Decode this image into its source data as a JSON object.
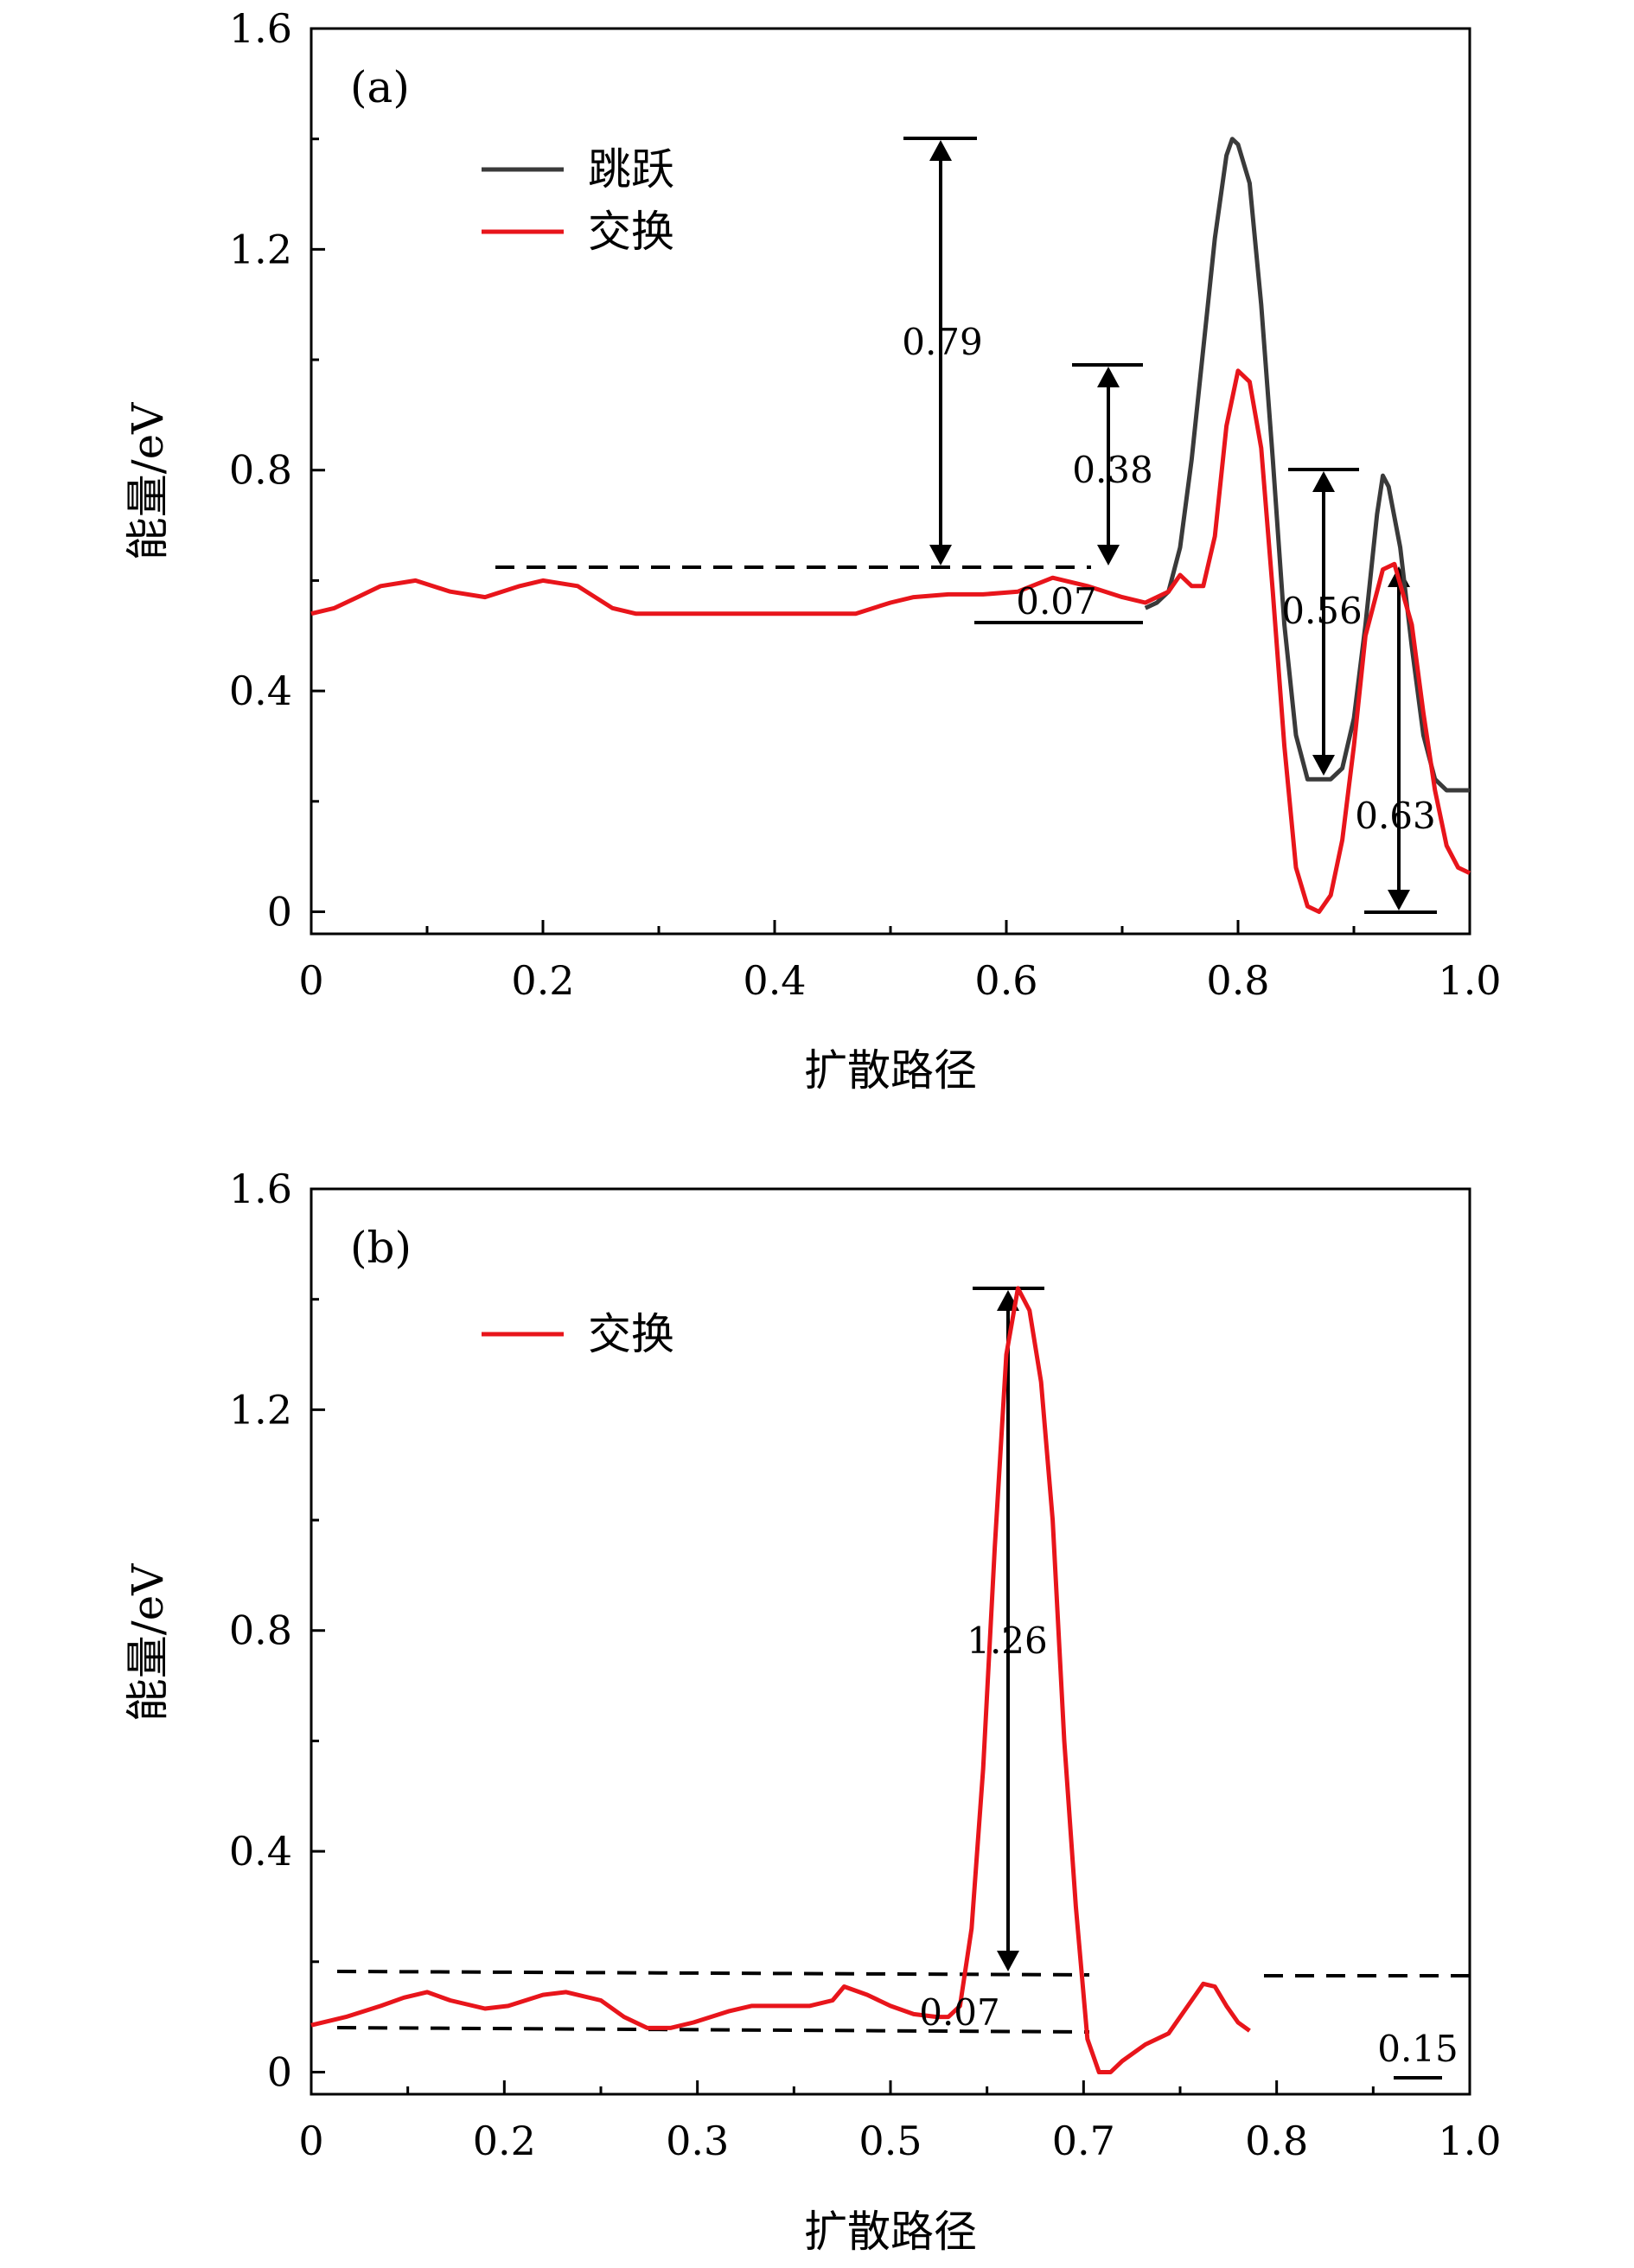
{
  "colors": {
    "jump": "#3a3a3a",
    "exchange": "#e8151b",
    "axis": "#000000",
    "background": "#ffffff"
  },
  "chart_data": [
    {
      "type": "line",
      "panel_label": "(a)",
      "xlabel": "扩散路径",
      "ylabel": "能量/eV",
      "xlim": [
        0,
        1.0
      ],
      "ylim": [
        -0.04,
        1.6
      ],
      "xticks": [
        0,
        0.2,
        0.4,
        0.6,
        0.8,
        1.0
      ],
      "xtick_labels": [
        "0",
        "0.2",
        "0.4",
        "0.6",
        "0.8",
        "1.0"
      ],
      "yticks": [
        0,
        0.4,
        0.8,
        1.2,
        1.6
      ],
      "ytick_labels": [
        "0",
        "0.4",
        "0.8",
        "1.2",
        "1.6"
      ],
      "legend_position": "top-left",
      "series": [
        {
          "name": "跳跃",
          "color": "#3a3a3a",
          "points": [
            [
              0.72,
              0.55
            ],
            [
              0.73,
              0.56
            ],
            [
              0.74,
              0.58
            ],
            [
              0.75,
              0.66
            ],
            [
              0.76,
              0.82
            ],
            [
              0.77,
              1.02
            ],
            [
              0.78,
              1.22
            ],
            [
              0.79,
              1.37
            ],
            [
              0.795,
              1.4
            ],
            [
              0.8,
              1.39
            ],
            [
              0.81,
              1.32
            ],
            [
              0.82,
              1.1
            ],
            [
              0.83,
              0.82
            ],
            [
              0.84,
              0.52
            ],
            [
              0.85,
              0.32
            ],
            [
              0.86,
              0.24
            ],
            [
              0.87,
              0.24
            ],
            [
              0.88,
              0.24
            ],
            [
              0.89,
              0.26
            ],
            [
              0.9,
              0.35
            ],
            [
              0.91,
              0.52
            ],
            [
              0.92,
              0.72
            ],
            [
              0.925,
              0.79
            ],
            [
              0.93,
              0.77
            ],
            [
              0.94,
              0.66
            ],
            [
              0.95,
              0.48
            ],
            [
              0.96,
              0.32
            ],
            [
              0.97,
              0.24
            ],
            [
              0.98,
              0.22
            ],
            [
              1.0,
              0.22
            ]
          ]
        },
        {
          "name": "交换",
          "color": "#e8151b",
          "points": [
            [
              0.0,
              0.54
            ],
            [
              0.02,
              0.55
            ],
            [
              0.04,
              0.57
            ],
            [
              0.06,
              0.59
            ],
            [
              0.09,
              0.6
            ],
            [
              0.12,
              0.58
            ],
            [
              0.15,
              0.57
            ],
            [
              0.18,
              0.59
            ],
            [
              0.2,
              0.6
            ],
            [
              0.23,
              0.59
            ],
            [
              0.26,
              0.55
            ],
            [
              0.28,
              0.54
            ],
            [
              0.32,
              0.54
            ],
            [
              0.4,
              0.54
            ],
            [
              0.47,
              0.54
            ],
            [
              0.5,
              0.56
            ],
            [
              0.52,
              0.57
            ],
            [
              0.55,
              0.575
            ],
            [
              0.58,
              0.575
            ],
            [
              0.61,
              0.58
            ],
            [
              0.64,
              0.605
            ],
            [
              0.67,
              0.59
            ],
            [
              0.7,
              0.57
            ],
            [
              0.72,
              0.56
            ],
            [
              0.73,
              0.57
            ],
            [
              0.74,
              0.58
            ],
            [
              0.75,
              0.61
            ],
            [
              0.76,
              0.59
            ],
            [
              0.77,
              0.59
            ],
            [
              0.78,
              0.68
            ],
            [
              0.79,
              0.88
            ],
            [
              0.8,
              0.98
            ],
            [
              0.81,
              0.96
            ],
            [
              0.82,
              0.84
            ],
            [
              0.83,
              0.58
            ],
            [
              0.84,
              0.3
            ],
            [
              0.85,
              0.08
            ],
            [
              0.86,
              0.01
            ],
            [
              0.87,
              0.0
            ],
            [
              0.88,
              0.03
            ],
            [
              0.89,
              0.13
            ],
            [
              0.9,
              0.3
            ],
            [
              0.91,
              0.5
            ],
            [
              0.925,
              0.62
            ],
            [
              0.935,
              0.63
            ],
            [
              0.95,
              0.52
            ],
            [
              0.96,
              0.36
            ],
            [
              0.97,
              0.22
            ],
            [
              0.98,
              0.12
            ],
            [
              0.99,
              0.08
            ],
            [
              1.0,
              0.07
            ]
          ]
        }
      ],
      "annotations": [
        "0.79",
        "0.38",
        "0.07",
        "0.56",
        "0.63"
      ],
      "legend": [
        "跳跃",
        "交换"
      ]
    },
    {
      "type": "line",
      "panel_label": "(b)",
      "xlabel": "扩散路径",
      "ylabel": "能量/eV",
      "xlim": [
        0,
        1.0
      ],
      "ylim": [
        -0.04,
        1.6
      ],
      "xticks": [
        0,
        0.2,
        0.3,
        0.5,
        0.7,
        0.8,
        1.0
      ],
      "xtick_labels": [
        "0",
        "0.2",
        "0.3",
        "0.5",
        "0.7",
        "0.8",
        "1.0"
      ],
      "yticks": [
        0,
        0.4,
        0.8,
        1.2,
        1.6
      ],
      "ytick_labels": [
        "0",
        "0.4",
        "0.8",
        "1.2",
        "1.6"
      ],
      "legend_position": "top-left",
      "series": [
        {
          "name": "交换",
          "color": "#e8151b",
          "points": [
            [
              0.0,
              0.085
            ],
            [
              0.03,
              0.1
            ],
            [
              0.06,
              0.12
            ],
            [
              0.08,
              0.135
            ],
            [
              0.1,
              0.145
            ],
            [
              0.12,
              0.13
            ],
            [
              0.15,
              0.115
            ],
            [
              0.17,
              0.12
            ],
            [
              0.2,
              0.14
            ],
            [
              0.22,
              0.145
            ],
            [
              0.25,
              0.13
            ],
            [
              0.27,
              0.1
            ],
            [
              0.29,
              0.08
            ],
            [
              0.31,
              0.08
            ],
            [
              0.33,
              0.09
            ],
            [
              0.36,
              0.11
            ],
            [
              0.38,
              0.12
            ],
            [
              0.41,
              0.12
            ],
            [
              0.43,
              0.12
            ],
            [
              0.45,
              0.13
            ],
            [
              0.46,
              0.155
            ],
            [
              0.48,
              0.14
            ],
            [
              0.5,
              0.12
            ],
            [
              0.52,
              0.105
            ],
            [
              0.54,
              0.1
            ],
            [
              0.55,
              0.1
            ],
            [
              0.56,
              0.12
            ],
            [
              0.57,
              0.26
            ],
            [
              0.58,
              0.55
            ],
            [
              0.59,
              0.95
            ],
            [
              0.6,
              1.3
            ],
            [
              0.61,
              1.42
            ],
            [
              0.62,
              1.38
            ],
            [
              0.63,
              1.25
            ],
            [
              0.64,
              1.0
            ],
            [
              0.65,
              0.6
            ],
            [
              0.66,
              0.3
            ],
            [
              0.67,
              0.06
            ],
            [
              0.68,
              0.0
            ],
            [
              0.69,
              0.0
            ],
            [
              0.7,
              0.02
            ],
            [
              0.72,
              0.05
            ],
            [
              0.74,
              0.07
            ],
            [
              0.76,
              0.13
            ],
            [
              0.77,
              0.16
            ],
            [
              0.78,
              0.155
            ],
            [
              0.79,
              0.12
            ],
            [
              0.8,
              0.09
            ],
            [
              0.81,
              0.075
            ]
          ]
        }
      ],
      "annotations": [
        "1.26",
        "0.07",
        "0.15"
      ],
      "legend": [
        "交换"
      ]
    }
  ]
}
